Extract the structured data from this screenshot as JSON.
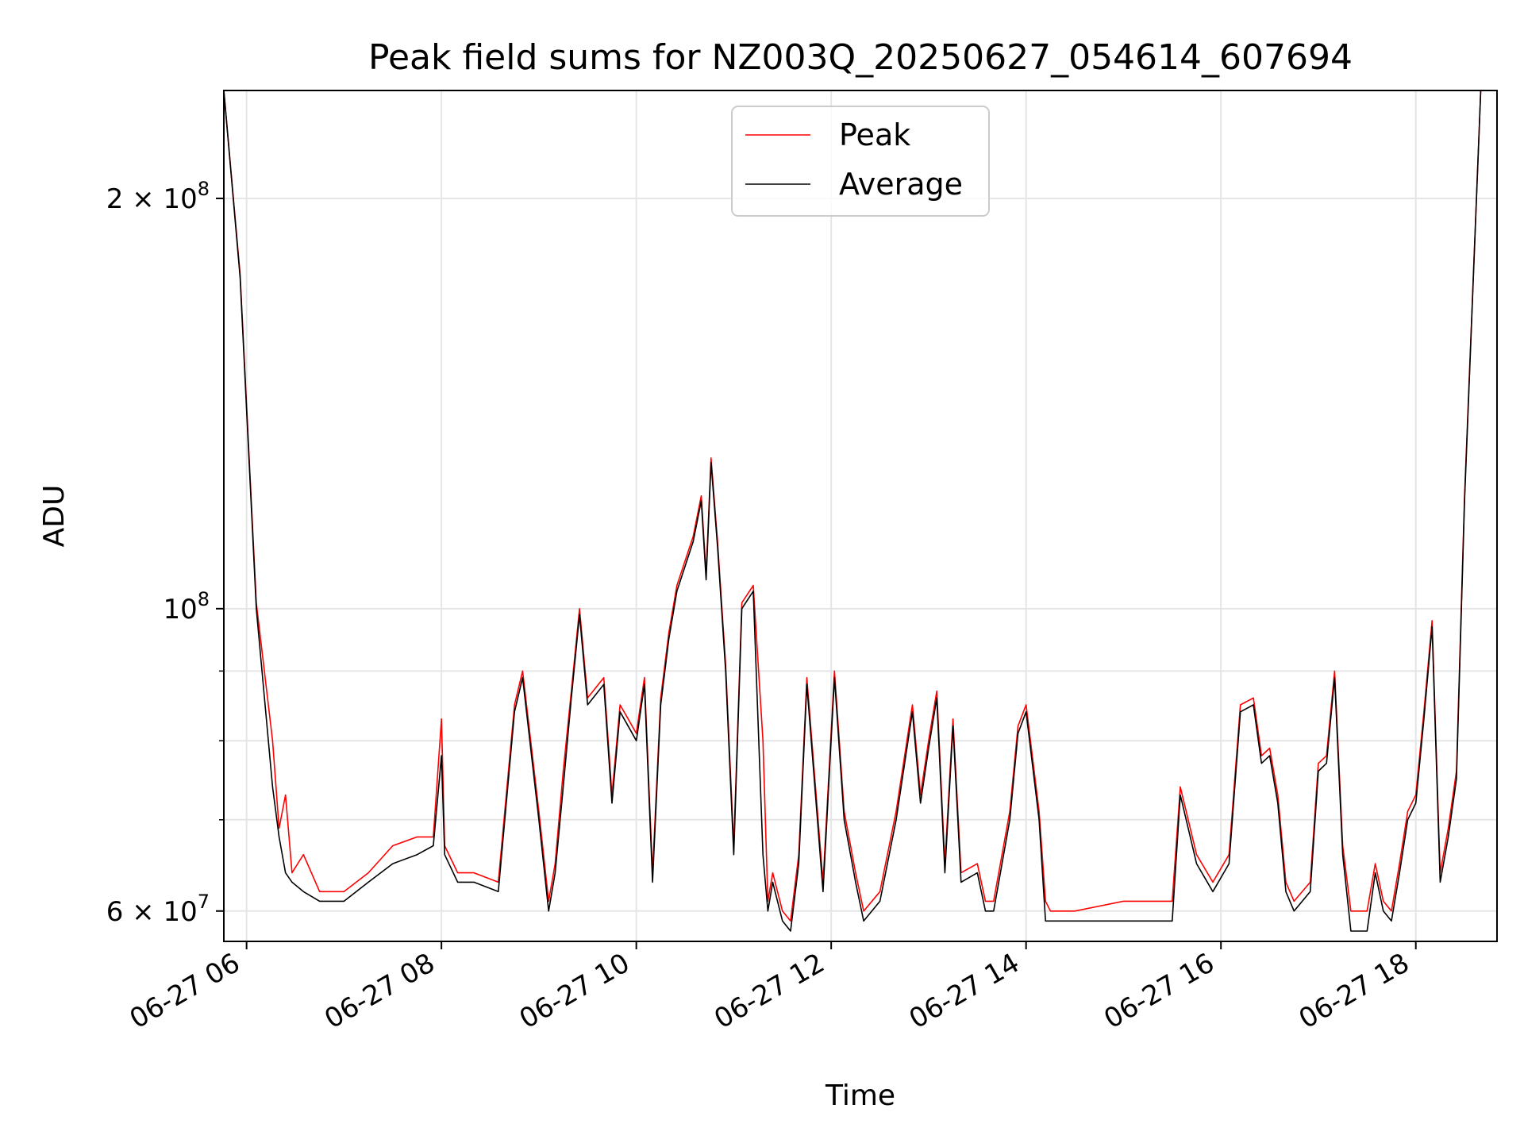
{
  "chart_data": {
    "type": "line",
    "title": "Peak field sums for NZ003Q_20250627_054614_607694",
    "xlabel": "Time",
    "ylabel": "ADU",
    "yscale": "log",
    "ylim": [
      57000000,
      240000000
    ],
    "xlim": [
      "06-27 05:46",
      "06-27 18:50"
    ],
    "grid": true,
    "legend_position": "top-center",
    "x_ticks": [
      {
        "value": "06-27 06:00",
        "label": "06-27 06"
      },
      {
        "value": "06-27 08:00",
        "label": "06-27 08"
      },
      {
        "value": "06-27 10:00",
        "label": "06-27 10"
      },
      {
        "value": "06-27 12:00",
        "label": "06-27 12"
      },
      {
        "value": "06-27 14:00",
        "label": "06-27 14"
      },
      {
        "value": "06-27 16:00",
        "label": "06-27 16"
      },
      {
        "value": "06-27 18:00",
        "label": "06-27 18"
      }
    ],
    "y_major_ticks": [
      {
        "value": 60000000,
        "base": "6 × 10",
        "exp": "7"
      },
      {
        "value": 100000000,
        "base": "10",
        "exp": "8"
      },
      {
        "value": 200000000,
        "base": "2 × 10",
        "exp": "8"
      }
    ],
    "y_minor_ticks": [
      70000000,
      80000000,
      90000000
    ],
    "series": [
      {
        "name": "Average",
        "color": "#000000",
        "x": [
          "06-27 05:46",
          "06-27 05:56",
          "06-27 06:06",
          "06-27 06:16",
          "06-27 06:20",
          "06-27 06:24",
          "06-27 06:28",
          "06-27 06:35",
          "06-27 06:45",
          "06-27 07:00",
          "06-27 07:15",
          "06-27 07:30",
          "06-27 07:45",
          "06-27 07:55",
          "06-27 08:00",
          "06-27 08:02",
          "06-27 08:10",
          "06-27 08:20",
          "06-27 08:35",
          "06-27 08:45",
          "06-27 08:50",
          "06-27 09:00",
          "06-27 09:06",
          "06-27 09:10",
          "06-27 09:15",
          "06-27 09:20",
          "06-27 09:25",
          "06-27 09:30",
          "06-27 09:40",
          "06-27 09:45",
          "06-27 09:50",
          "06-27 09:55",
          "06-27 10:00",
          "06-27 10:05",
          "06-27 10:10",
          "06-27 10:15",
          "06-27 10:20",
          "06-27 10:25",
          "06-27 10:35",
          "06-27 10:40",
          "06-27 10:43",
          "06-27 10:46",
          "06-27 10:50",
          "06-27 10:55",
          "06-27 11:00",
          "06-27 11:05",
          "06-27 11:12",
          "06-27 11:18",
          "06-27 11:21",
          "06-27 11:24",
          "06-27 11:30",
          "06-27 11:35",
          "06-27 11:40",
          "06-27 11:45",
          "06-27 11:55",
          "06-27 12:02",
          "06-27 12:08",
          "06-27 12:15",
          "06-27 12:20",
          "06-27 12:30",
          "06-27 12:40",
          "06-27 12:50",
          "06-27 12:55",
          "06-27 13:00",
          "06-27 13:05",
          "06-27 13:10",
          "06-27 13:15",
          "06-27 13:20",
          "06-27 13:30",
          "06-27 13:35",
          "06-27 13:40",
          "06-27 13:50",
          "06-27 13:55",
          "06-27 14:00",
          "06-27 14:08",
          "06-27 14:12",
          "06-27 14:15",
          "06-27 14:20",
          "06-27 14:30",
          "06-27 15:00",
          "06-27 15:30",
          "06-27 15:35",
          "06-27 15:45",
          "06-27 15:55",
          "06-27 16:05",
          "06-27 16:12",
          "06-27 16:20",
          "06-27 16:25",
          "06-27 16:30",
          "06-27 16:35",
          "06-27 16:40",
          "06-27 16:45",
          "06-27 16:55",
          "06-27 17:00",
          "06-27 17:05",
          "06-27 17:10",
          "06-27 17:15",
          "06-27 17:20",
          "06-27 17:30",
          "06-27 17:35",
          "06-27 17:40",
          "06-27 17:45",
          "06-27 17:50",
          "06-27 17:55",
          "06-27 18:00",
          "06-27 18:05",
          "06-27 18:10",
          "06-27 18:15",
          "06-27 18:20",
          "06-27 18:25",
          "06-27 18:30",
          "06-27 18:40",
          "06-27 18:50"
        ],
        "y": [
          240000000,
          175000000,
          100000000,
          74000000,
          68000000,
          64000000,
          63000000,
          62000000,
          61000000,
          61000000,
          63000000,
          65000000,
          66000000,
          67000000,
          78000000,
          66000000,
          63000000,
          63000000,
          62000000,
          84000000,
          89000000,
          70000000,
          60000000,
          64000000,
          74000000,
          86000000,
          99000000,
          85000000,
          88000000,
          72000000,
          84000000,
          82000000,
          80000000,
          88000000,
          63000000,
          85000000,
          95000000,
          103000000,
          112000000,
          120000000,
          105000000,
          128000000,
          111000000,
          90000000,
          66000000,
          100000000,
          103000000,
          66000000,
          60000000,
          63000000,
          59000000,
          58000000,
          65000000,
          88000000,
          62000000,
          89000000,
          70000000,
          63000000,
          59000000,
          61000000,
          70000000,
          84000000,
          72000000,
          79000000,
          86000000,
          64000000,
          82000000,
          63000000,
          64000000,
          60000000,
          60000000,
          70000000,
          81000000,
          84000000,
          70000000,
          59000000,
          59000000,
          59000000,
          59000000,
          59000000,
          59000000,
          73000000,
          65000000,
          62000000,
          65000000,
          84000000,
          85000000,
          77000000,
          78000000,
          72000000,
          62000000,
          60000000,
          62000000,
          76000000,
          77000000,
          89000000,
          66000000,
          58000000,
          58000000,
          64000000,
          60000000,
          59000000,
          64000000,
          70000000,
          72000000,
          83000000,
          97000000,
          63000000,
          68000000,
          75000000,
          120000000,
          240000000,
          240000000
        ]
      },
      {
        "name": "Peak",
        "color": "#ff0000",
        "x": [
          "06-27 05:46",
          "06-27 05:56",
          "06-27 06:06",
          "06-27 06:16",
          "06-27 06:20",
          "06-27 06:24",
          "06-27 06:28",
          "06-27 06:35",
          "06-27 06:45",
          "06-27 07:00",
          "06-27 07:15",
          "06-27 07:30",
          "06-27 07:45",
          "06-27 07:55",
          "06-27 08:00",
          "06-27 08:02",
          "06-27 08:10",
          "06-27 08:20",
          "06-27 08:35",
          "06-27 08:45",
          "06-27 08:50",
          "06-27 09:00",
          "06-27 09:06",
          "06-27 09:10",
          "06-27 09:15",
          "06-27 09:20",
          "06-27 09:25",
          "06-27 09:30",
          "06-27 09:40",
          "06-27 09:45",
          "06-27 09:50",
          "06-27 09:55",
          "06-27 10:00",
          "06-27 10:05",
          "06-27 10:10",
          "06-27 10:15",
          "06-27 10:20",
          "06-27 10:25",
          "06-27 10:35",
          "06-27 10:40",
          "06-27 10:43",
          "06-27 10:46",
          "06-27 10:50",
          "06-27 10:55",
          "06-27 11:00",
          "06-27 11:05",
          "06-27 11:12",
          "06-27 11:18",
          "06-27 11:21",
          "06-27 11:24",
          "06-27 11:30",
          "06-27 11:35",
          "06-27 11:40",
          "06-27 11:45",
          "06-27 11:55",
          "06-27 12:02",
          "06-27 12:08",
          "06-27 12:15",
          "06-27 12:20",
          "06-27 12:30",
          "06-27 12:40",
          "06-27 12:50",
          "06-27 12:55",
          "06-27 13:00",
          "06-27 13:05",
          "06-27 13:10",
          "06-27 13:15",
          "06-27 13:20",
          "06-27 13:30",
          "06-27 13:35",
          "06-27 13:40",
          "06-27 13:50",
          "06-27 13:55",
          "06-27 14:00",
          "06-27 14:08",
          "06-27 14:12",
          "06-27 14:15",
          "06-27 14:20",
          "06-27 14:30",
          "06-27 15:00",
          "06-27 15:30",
          "06-27 15:35",
          "06-27 15:45",
          "06-27 15:55",
          "06-27 16:05",
          "06-27 16:12",
          "06-27 16:20",
          "06-27 16:25",
          "06-27 16:30",
          "06-27 16:35",
          "06-27 16:40",
          "06-27 16:45",
          "06-27 16:55",
          "06-27 17:00",
          "06-27 17:05",
          "06-27 17:10",
          "06-27 17:15",
          "06-27 17:20",
          "06-27 17:30",
          "06-27 17:35",
          "06-27 17:40",
          "06-27 17:45",
          "06-27 17:50",
          "06-27 17:55",
          "06-27 18:00",
          "06-27 18:05",
          "06-27 18:10",
          "06-27 18:15",
          "06-27 18:20",
          "06-27 18:25",
          "06-27 18:30",
          "06-27 18:40",
          "06-27 18:50"
        ],
        "y": [
          240000000,
          176000000,
          101000000,
          80000000,
          69000000,
          73000000,
          64000000,
          66000000,
          62000000,
          62000000,
          64000000,
          67000000,
          68000000,
          68000000,
          83000000,
          67000000,
          64000000,
          64000000,
          63000000,
          85000000,
          90000000,
          71000000,
          61000000,
          65000000,
          76000000,
          87000000,
          100000000,
          86000000,
          89000000,
          73000000,
          85000000,
          83000000,
          81000000,
          89000000,
          64000000,
          86000000,
          96000000,
          104000000,
          113000000,
          121000000,
          106000000,
          129000000,
          112000000,
          91000000,
          67000000,
          101000000,
          104000000,
          80000000,
          61000000,
          64000000,
          60000000,
          59000000,
          66000000,
          89000000,
          63000000,
          90000000,
          71000000,
          64000000,
          60000000,
          62000000,
          71000000,
          85000000,
          73000000,
          80000000,
          87000000,
          65000000,
          83000000,
          64000000,
          65000000,
          61000000,
          61000000,
          71000000,
          82000000,
          85000000,
          71000000,
          61000000,
          60000000,
          60000000,
          60000000,
          61000000,
          61000000,
          74000000,
          66000000,
          63000000,
          66000000,
          85000000,
          86000000,
          78000000,
          79000000,
          73000000,
          63000000,
          61000000,
          63000000,
          77000000,
          78000000,
          90000000,
          67000000,
          60000000,
          60000000,
          65000000,
          61000000,
          60000000,
          65000000,
          71000000,
          73000000,
          84000000,
          98000000,
          64000000,
          69000000,
          76000000,
          121000000,
          240000000,
          240000000
        ]
      }
    ]
  }
}
